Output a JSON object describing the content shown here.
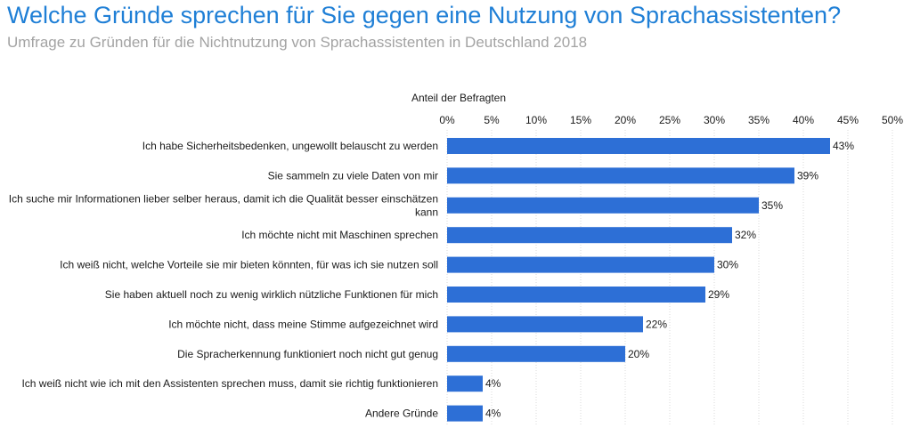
{
  "title": "Welche Gründe sprechen für Sie gegen eine Nutzung von Sprachassistenten?",
  "subtitle": "Umfrage zu Gründen für die Nichtnutzung von Sprachassistenten in Deutschland 2018",
  "colors": {
    "bar": "#2d6fd6",
    "title": "#1f7fd6",
    "subtitle": "#a3a3a3",
    "grid": "#d9d9d9"
  },
  "chart_data": {
    "type": "bar",
    "orientation": "horizontal",
    "xlabel": "Anteil der Befragten",
    "xlim": [
      0,
      50
    ],
    "ticks": [
      "0%",
      "5%",
      "10%",
      "15%",
      "20%",
      "25%",
      "30%",
      "35%",
      "40%",
      "45%",
      "50%"
    ],
    "tick_values": [
      0,
      5,
      10,
      15,
      20,
      25,
      30,
      35,
      40,
      45,
      50
    ],
    "grid": true,
    "categories": [
      [
        "Ich habe Sicherheitsbedenken, ungewollt belauscht zu werden"
      ],
      [
        "Sie sammeln zu viele Daten von mir"
      ],
      [
        "Ich suche mir Informationen lieber selber heraus, damit ich die Qualität besser einschätzen",
        "kann"
      ],
      [
        "Ich möchte nicht mit Maschinen sprechen"
      ],
      [
        "Ich weiß nicht, welche Vorteile sie mir bieten könnten, für was ich sie nutzen soll"
      ],
      [
        "Sie haben aktuell noch zu wenig wirklich nützliche Funktionen für mich"
      ],
      [
        "Ich möchte nicht, dass meine Stimme aufgezeichnet wird"
      ],
      [
        "Die Spracherkennung funktioniert noch nicht gut genug"
      ],
      [
        "Ich weiß nicht wie ich mit den Assistenten sprechen muss, damit sie richtig funktionieren"
      ],
      [
        "Andere Gründe"
      ]
    ],
    "values": [
      43,
      39,
      35,
      32,
      30,
      29,
      22,
      20,
      4,
      4
    ],
    "value_labels": [
      "43%",
      "39%",
      "35%",
      "32%",
      "30%",
      "29%",
      "22%",
      "20%",
      "4%",
      "4%"
    ]
  }
}
